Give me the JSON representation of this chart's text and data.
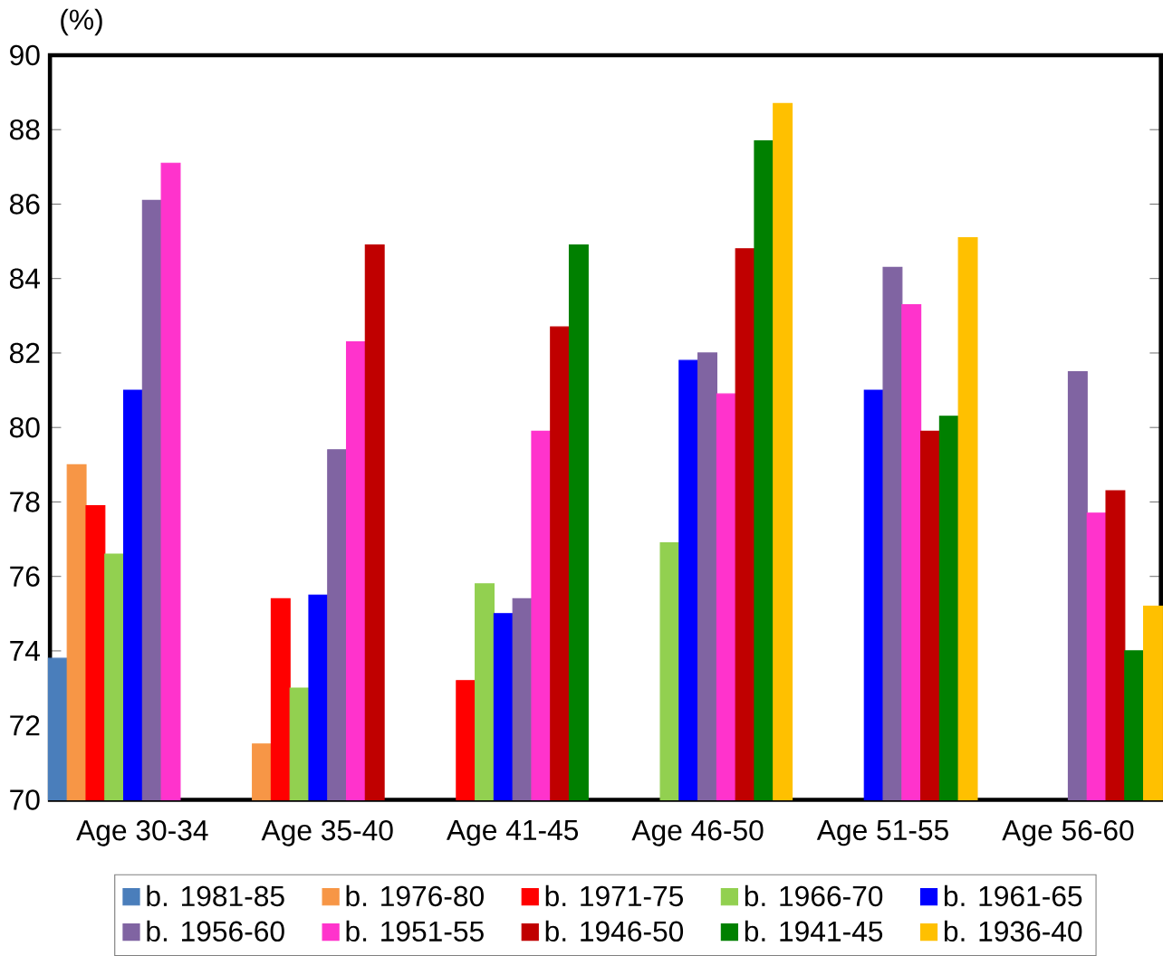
{
  "chart_data": {
    "type": "bar",
    "ylabel": "(%)",
    "categories": [
      "Age 30-34",
      "Age 35-40",
      "Age 41-45",
      "Age 46-50",
      "Age 51-55",
      "Age 56-60"
    ],
    "ylim": [
      70,
      90
    ],
    "yticks": [
      70,
      72,
      74,
      76,
      78,
      80,
      82,
      84,
      86,
      88,
      90
    ],
    "legend": "bottom",
    "series": [
      {
        "name": "b. 1981-85",
        "color": "#4a7ebb",
        "values": [
          73.8,
          null,
          null,
          null,
          null,
          null
        ]
      },
      {
        "name": "b. 1976-80",
        "color": "#f79646",
        "values": [
          79.0,
          71.5,
          null,
          null,
          null,
          null
        ]
      },
      {
        "name": "b. 1971-75",
        "color": "#ff0000",
        "values": [
          77.9,
          75.4,
          73.2,
          null,
          null,
          null
        ]
      },
      {
        "name": "b. 1966-70",
        "color": "#92d050",
        "values": [
          76.6,
          73.0,
          75.8,
          76.9,
          null,
          null
        ]
      },
      {
        "name": "b. 1961-65",
        "color": "#0000ff",
        "values": [
          81.0,
          75.5,
          75.0,
          81.8,
          81.0,
          null
        ]
      },
      {
        "name": "b. 1956-60",
        "color": "#8064a2",
        "values": [
          86.1,
          79.4,
          75.4,
          82.0,
          84.3,
          81.5
        ]
      },
      {
        "name": "b. 1951-55",
        "color": "#ff33cc",
        "values": [
          87.1,
          82.3,
          79.9,
          80.9,
          83.3,
          77.7
        ]
      },
      {
        "name": "b. 1946-50",
        "color": "#c00000",
        "values": [
          null,
          84.9,
          82.7,
          84.8,
          79.9,
          78.3
        ]
      },
      {
        "name": "b. 1941-45",
        "color": "#008000",
        "values": [
          null,
          null,
          84.9,
          87.7,
          80.3,
          74.0
        ]
      },
      {
        "name": "b. 1936-40",
        "color": "#ffc000",
        "values": [
          null,
          null,
          null,
          88.7,
          85.1,
          75.2
        ]
      }
    ]
  }
}
